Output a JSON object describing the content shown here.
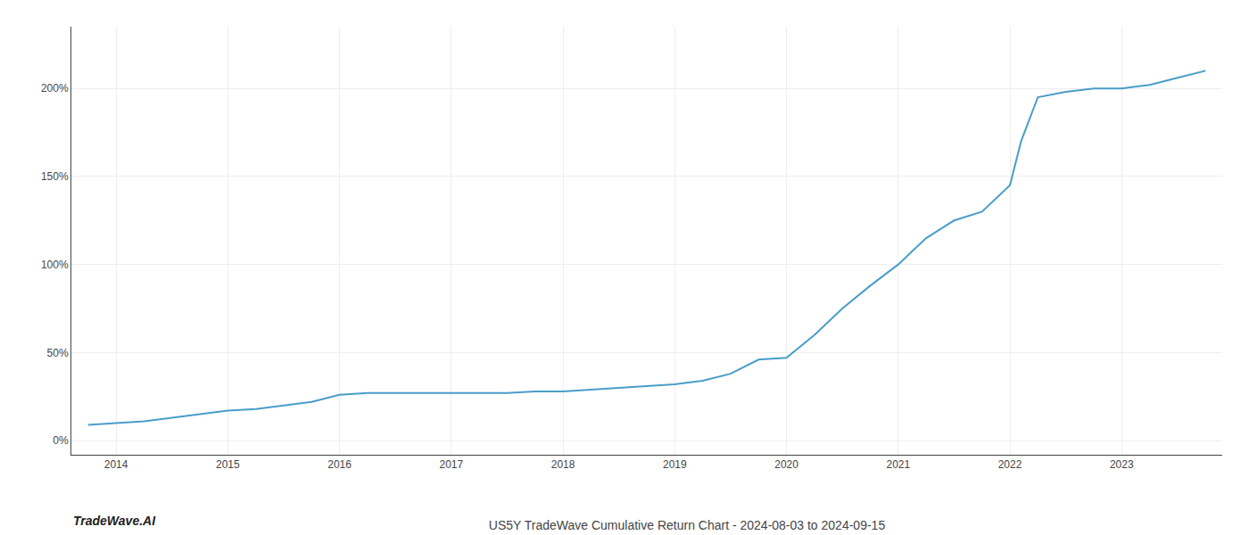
{
  "chart_data": {
    "type": "line",
    "title": "US5Y TradeWave Cumulative Return Chart - 2024-08-03 to 2024-09-15",
    "annotations": [
      {
        "text": "TradeWave.AI"
      }
    ],
    "x": [
      2013.75,
      2014.0,
      2014.25,
      2014.5,
      2014.75,
      2015.0,
      2015.25,
      2015.5,
      2015.75,
      2016.0,
      2016.25,
      2016.5,
      2016.75,
      2017.0,
      2017.25,
      2017.5,
      2017.75,
      2018.0,
      2018.25,
      2018.5,
      2018.75,
      2019.0,
      2019.25,
      2019.5,
      2019.75,
      2020.0,
      2020.25,
      2020.5,
      2020.75,
      2021.0,
      2021.25,
      2021.5,
      2021.75,
      2022.0,
      2022.1,
      2022.25,
      2022.5,
      2022.75,
      2023.0,
      2023.25,
      2023.5,
      2023.75
    ],
    "values": [
      9,
      10,
      11,
      13,
      15,
      17,
      18,
      20,
      22,
      26,
      27,
      27,
      27,
      27,
      27,
      27,
      28,
      28,
      29,
      30,
      31,
      32,
      34,
      38,
      46,
      47,
      60,
      75,
      88,
      100,
      115,
      125,
      130,
      145,
      170,
      195,
      198,
      200,
      200,
      202,
      206,
      210
    ],
    "color": "#4a9dc9",
    "xlim": [
      2013.6,
      2023.9
    ],
    "ylim": [
      -8,
      235
    ],
    "xticks": [
      2014,
      2015,
      2016,
      2017,
      2018,
      2019,
      2020,
      2021,
      2022,
      2023
    ],
    "yticks": [
      {
        "value": 0,
        "label": "0%"
      },
      {
        "value": 50,
        "label": "50%"
      },
      {
        "value": 100,
        "label": "100%"
      },
      {
        "value": 150,
        "label": "150%"
      },
      {
        "value": 200,
        "label": "200%"
      }
    ],
    "grid": true
  }
}
